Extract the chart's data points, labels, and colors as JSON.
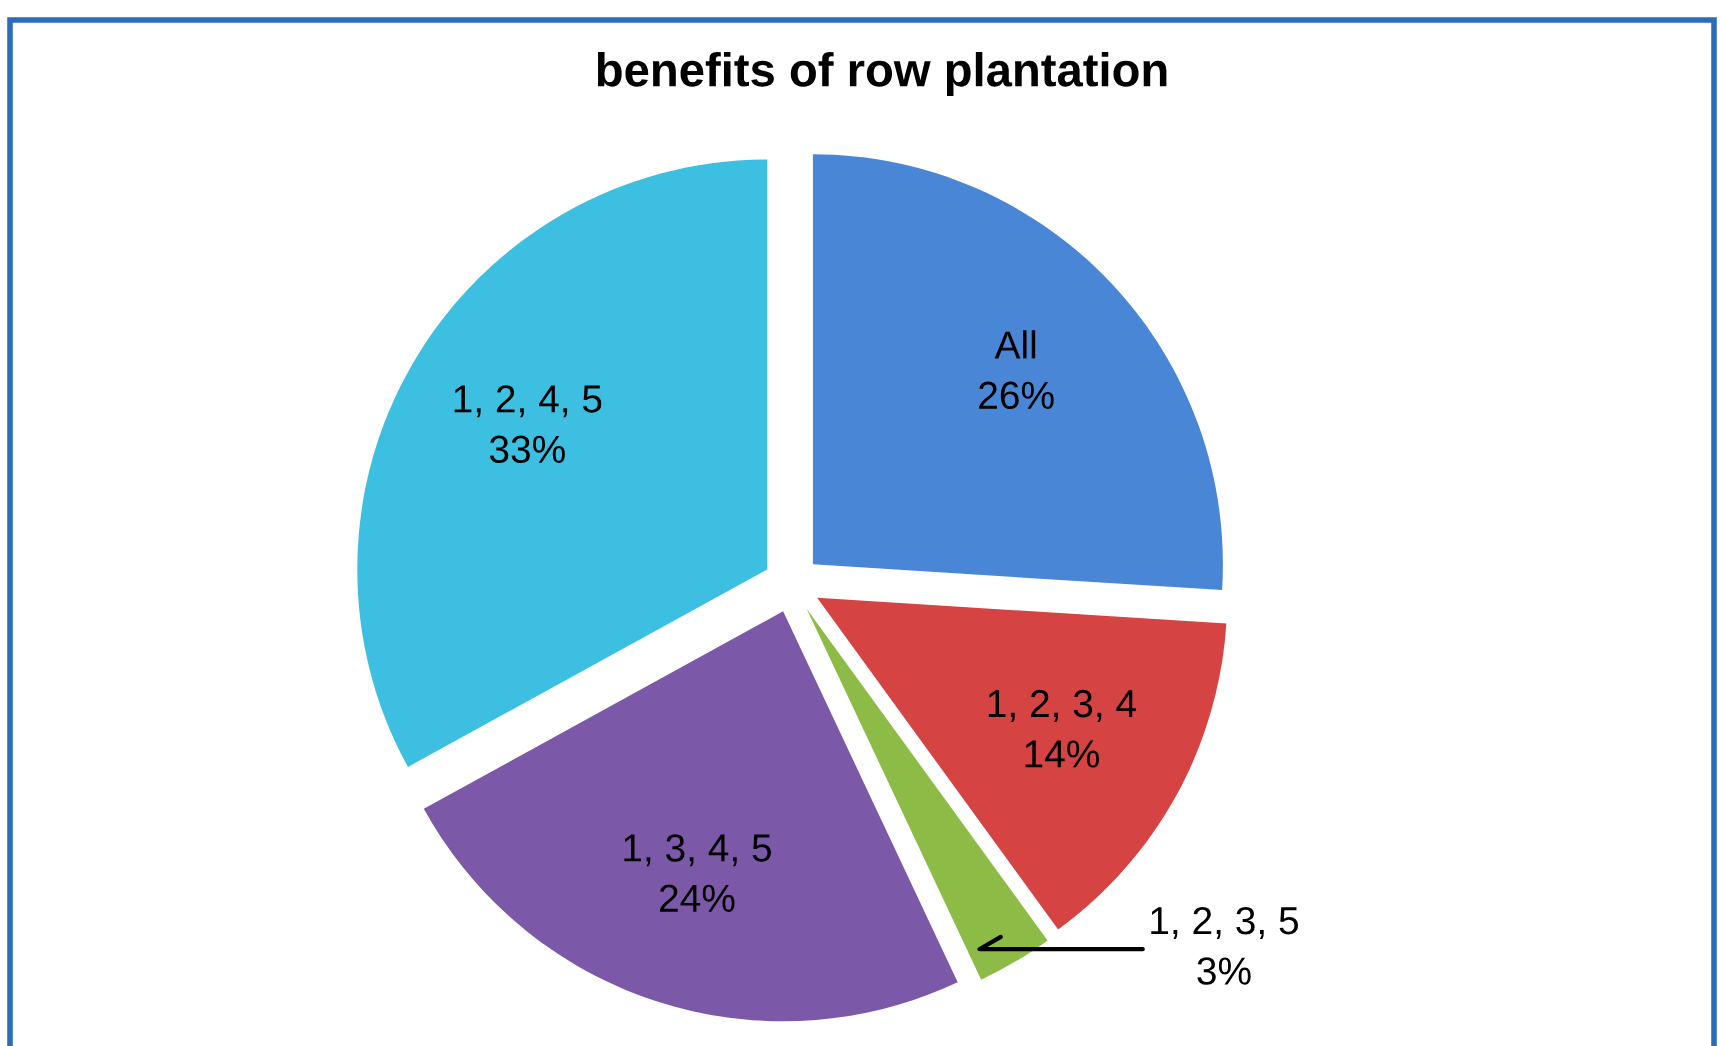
{
  "chart_data": {
    "type": "pie",
    "title": "benefits of row plantation",
    "categories": [
      "All",
      "1, 2, 3, 4",
      "1, 2, 3, 5",
      "1, 3, 4, 5",
      "1, 2, 4, 5"
    ],
    "values": [
      26,
      14,
      3,
      24,
      33
    ],
    "colors": [
      "#4a86d6",
      "#d64343",
      "#8cbc45",
      "#7c59a8",
      "#3dbfe1"
    ],
    "value_labels": [
      "26%",
      "14%",
      "3%",
      "24%",
      "33%"
    ]
  }
}
